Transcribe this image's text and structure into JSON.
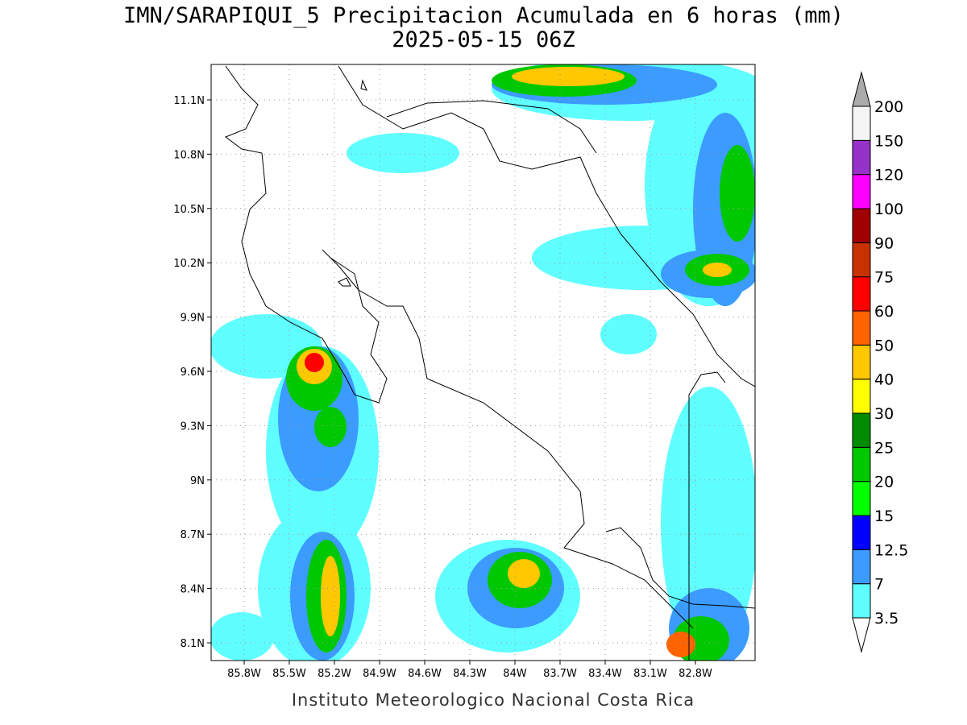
{
  "title": "IMN/SARAPIQUI_5 Precipitacion Acumulada en 6 horas (mm)",
  "subtitle": "2025-05-15 06Z",
  "lat_labels": [
    "11.1N",
    "10.8N",
    "10.5N",
    "10.2N",
    "9.9N",
    "9.6N",
    "9.3N",
    "9N",
    "8.7N",
    "8.4N",
    "8.1N"
  ],
  "lon_labels": [
    "85.8W",
    "85.5W",
    "85.2W",
    "84.9W",
    "84.6W",
    "84.3W",
    "84W",
    "83.7W",
    "83.4W",
    "83.1W",
    "82.8W"
  ],
  "colorbar": {
    "levels": [
      3.5,
      7,
      12.5,
      15,
      20,
      25,
      30,
      40,
      50,
      60,
      75,
      90,
      100,
      120,
      150,
      200
    ],
    "colors": [
      "#60ffff",
      "#3c9bff",
      "#0000ff",
      "#00ff00",
      "#00c800",
      "#008c00",
      "#ffff00",
      "#ffc800",
      "#ff6400",
      "#ff0000",
      "#c83200",
      "#a00000",
      "#ff00ff",
      "#9632c8",
      "#f5f5f5"
    ],
    "under_color": "#ffffff",
    "over_color": "#aaaaaa"
  },
  "footer": "Instituto Meteorologico Nacional Costa Rica"
}
